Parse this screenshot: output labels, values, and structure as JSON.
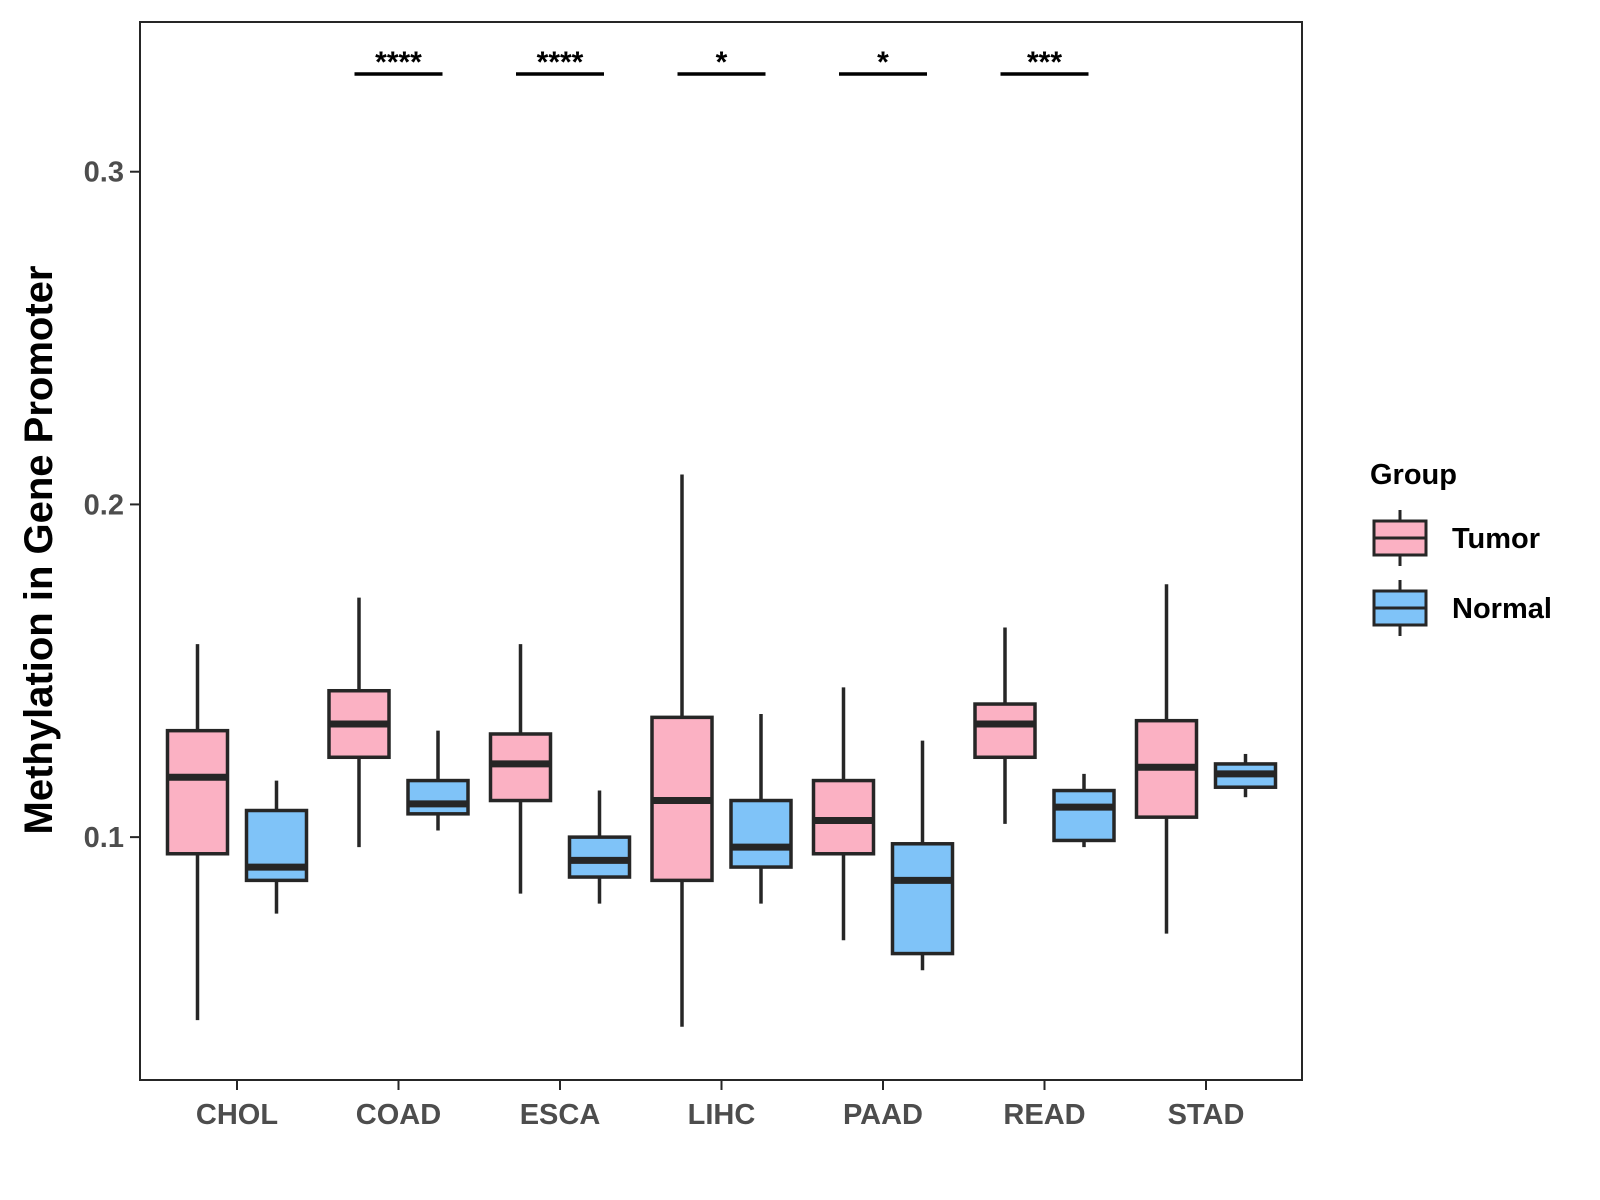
{
  "chart_data": {
    "type": "boxplot",
    "title": "",
    "xlabel": "",
    "ylabel": "Methylation in Gene Promoter",
    "categories": [
      "CHOL",
      "COAD",
      "ESCA",
      "LIHC",
      "PAAD",
      "READ",
      "STAD"
    ],
    "ylim": [
      0.027,
      0.345
    ],
    "yticks": [
      0.1,
      0.2,
      0.3
    ],
    "ytick_labels": [
      "0.1",
      "0.2",
      "0.3"
    ],
    "grid": false,
    "legend": {
      "title": "Group",
      "position": "right",
      "entries": [
        "Tumor",
        "Normal"
      ]
    },
    "series": [
      {
        "name": "Tumor",
        "color": "#fbb1c3",
        "boxes": [
          {
            "whisker_low": 0.045,
            "q1": 0.095,
            "median": 0.118,
            "q3": 0.132,
            "whisker_high": 0.158
          },
          {
            "whisker_low": 0.097,
            "q1": 0.124,
            "median": 0.134,
            "q3": 0.144,
            "whisker_high": 0.172
          },
          {
            "whisker_low": 0.083,
            "q1": 0.111,
            "median": 0.122,
            "q3": 0.131,
            "whisker_high": 0.158
          },
          {
            "whisker_low": 0.043,
            "q1": 0.087,
            "median": 0.111,
            "q3": 0.136,
            "whisker_high": 0.209
          },
          {
            "whisker_low": 0.069,
            "q1": 0.095,
            "median": 0.105,
            "q3": 0.117,
            "whisker_high": 0.145
          },
          {
            "whisker_low": 0.104,
            "q1": 0.124,
            "median": 0.134,
            "q3": 0.14,
            "whisker_high": 0.163
          },
          {
            "whisker_low": 0.071,
            "q1": 0.106,
            "median": 0.121,
            "q3": 0.135,
            "whisker_high": 0.176
          }
        ]
      },
      {
        "name": "Normal",
        "color": "#7fc3f8",
        "boxes": [
          {
            "whisker_low": 0.077,
            "q1": 0.087,
            "median": 0.091,
            "q3": 0.108,
            "whisker_high": 0.117
          },
          {
            "whisker_low": 0.102,
            "q1": 0.107,
            "median": 0.11,
            "q3": 0.117,
            "whisker_high": 0.132
          },
          {
            "whisker_low": 0.08,
            "q1": 0.088,
            "median": 0.093,
            "q3": 0.1,
            "whisker_high": 0.114
          },
          {
            "whisker_low": 0.08,
            "q1": 0.091,
            "median": 0.097,
            "q3": 0.111,
            "whisker_high": 0.137
          },
          {
            "whisker_low": 0.06,
            "q1": 0.065,
            "median": 0.087,
            "q3": 0.098,
            "whisker_high": 0.129
          },
          {
            "whisker_low": 0.097,
            "q1": 0.099,
            "median": 0.109,
            "q3": 0.114,
            "whisker_high": 0.119
          },
          {
            "whisker_low": 0.112,
            "q1": 0.115,
            "median": 0.119,
            "q3": 0.122,
            "whisker_high": 0.125
          }
        ]
      }
    ],
    "annotations": [
      {
        "category": "COAD",
        "label": "****"
      },
      {
        "category": "ESCA",
        "label": "****"
      },
      {
        "category": "LIHC",
        "label": "*"
      },
      {
        "category": "PAAD",
        "label": "*"
      },
      {
        "category": "READ",
        "label": "***"
      }
    ],
    "colors": {
      "outline": "#262626",
      "axis_text": "#4d4d4d",
      "panel_border": "#262626"
    }
  }
}
